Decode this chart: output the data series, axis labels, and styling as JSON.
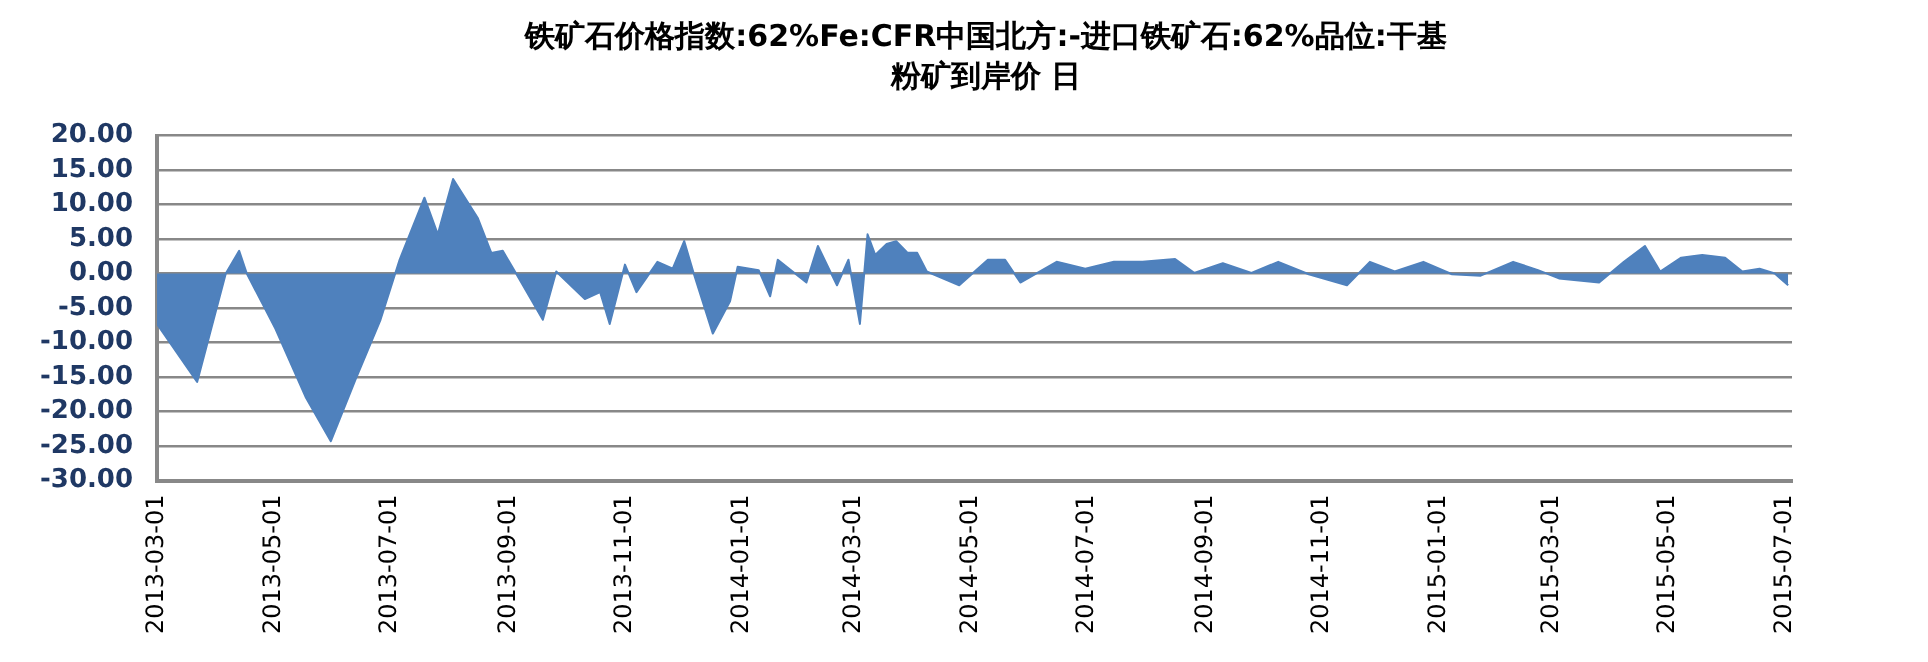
{
  "chart_data": {
    "type": "area",
    "title": "铁矿石价格指数:62%Fe:CFR中国北方:-进口铁矿石:62%品位:干基粉矿到岸价 日",
    "x": [
      "2013-03-01",
      "2013-03-22",
      "2013-04-06",
      "2013-04-13",
      "2013-04-17",
      "2013-05-02",
      "2013-05-18",
      "2013-05-31",
      "2013-06-13",
      "2013-06-26",
      "2013-07-06",
      "2013-07-19",
      "2013-07-26",
      "2013-08-03",
      "2013-08-16",
      "2013-08-23",
      "2013-08-29",
      "2013-09-05",
      "2013-09-19",
      "2013-09-26",
      "2013-10-11",
      "2013-10-19",
      "2013-10-24",
      "2013-11-01",
      "2013-11-07",
      "2013-11-18",
      "2013-11-26",
      "2013-12-02",
      "2013-12-07",
      "2013-12-17",
      "2013-12-26",
      "2013-12-30",
      "2014-01-10",
      "2014-01-16",
      "2014-01-20",
      "2014-02-04",
      "2014-02-10",
      "2014-02-17",
      "2014-02-20",
      "2014-02-26",
      "2014-03-04",
      "2014-03-08",
      "2014-03-12",
      "2014-03-18",
      "2014-03-23",
      "2014-03-29",
      "2014-04-03",
      "2014-04-08",
      "2014-04-25",
      "2014-05-10",
      "2014-05-19",
      "2014-05-27",
      "2014-06-15",
      "2014-06-30",
      "2014-07-15",
      "2014-07-30",
      "2014-08-16",
      "2014-08-26",
      "2014-09-10",
      "2014-09-25",
      "2014-10-09",
      "2014-10-25",
      "2014-11-14",
      "2014-11-26",
      "2014-12-09",
      "2014-12-24",
      "2015-01-08",
      "2015-01-23",
      "2015-02-09",
      "2015-02-22",
      "2015-03-05",
      "2015-03-26",
      "2015-04-08",
      "2015-04-19",
      "2015-04-27",
      "2015-05-08",
      "2015-05-19",
      "2015-05-31",
      "2015-06-09",
      "2015-06-18",
      "2015-06-26",
      "2015-07-03"
    ],
    "series": [
      {
        "color": "#4f81bd",
        "values": [
          -7.3,
          -15.7,
          0,
          3.3,
          0,
          -8,
          -18,
          -24.3,
          -15.3,
          -6.7,
          2,
          11,
          5.7,
          13.7,
          8,
          3,
          3.3,
          0,
          -6.7,
          0.3,
          -3.7,
          -2.7,
          -7.3,
          1.3,
          -2.7,
          1.7,
          0.7,
          4.7,
          0,
          -8.7,
          -4,
          1,
          0.5,
          -3.3,
          2,
          -1.3,
          4,
          0,
          -1.7,
          2,
          -7.3,
          5.7,
          2.7,
          4.3,
          4.7,
          3,
          3,
          0.3,
          -1.7,
          2,
          2,
          -1.3,
          1.7,
          0.7,
          1.7,
          1.7,
          2.1,
          0.1,
          1.5,
          0.1,
          1.7,
          -0.1,
          -1.7,
          1.7,
          0.3,
          1.7,
          -0.1,
          -0.3,
          1.7,
          0.5,
          -0.7,
          -1.3,
          1.7,
          4,
          0.3,
          2.3,
          2.7,
          2.3,
          0.3,
          0.7,
          0,
          -1.7
        ]
      }
    ],
    "xlim": [
      "2013-03-01",
      "2015-07-05"
    ],
    "xticks": [
      "2013-03-01",
      "2013-05-01",
      "2013-07-01",
      "2013-09-01",
      "2013-11-01",
      "2014-01-01",
      "2014-03-01",
      "2014-05-01",
      "2014-07-01",
      "2014-09-01",
      "2014-11-01",
      "2015-01-01",
      "2015-03-01",
      "2015-05-01",
      "2015-07-01"
    ],
    "ylim": [
      -30,
      20
    ],
    "yticks": [
      {
        "value": -30,
        "label": "-30.00"
      },
      {
        "value": -25,
        "label": "-25.00"
      },
      {
        "value": -20,
        "label": "-20.00"
      },
      {
        "value": -15,
        "label": "-15.00"
      },
      {
        "value": -10,
        "label": "-10.00"
      },
      {
        "value": -5,
        "label": "-5.00"
      },
      {
        "value": 0,
        "label": "0.00"
      },
      {
        "value": 5,
        "label": "5.00"
      },
      {
        "value": 10,
        "label": "10.00"
      },
      {
        "value": 15,
        "label": "15.00"
      },
      {
        "value": 20,
        "label": "20.00"
      }
    ],
    "grid": "y",
    "legend": false
  }
}
